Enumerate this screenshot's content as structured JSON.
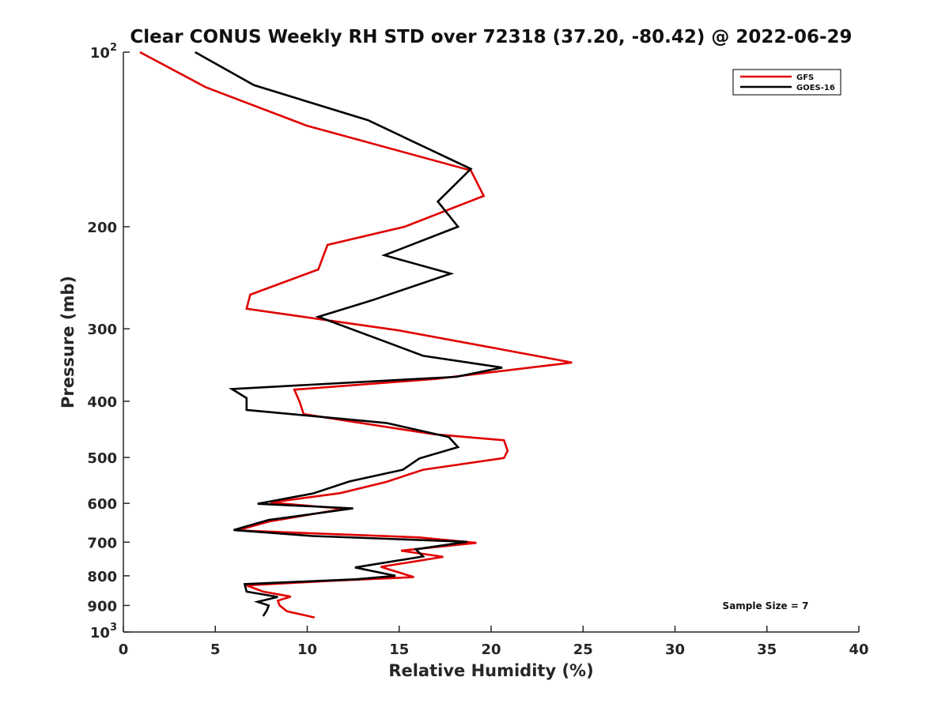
{
  "chart_data": {
    "type": "line",
    "title": "Clear CONUS Weekly RH STD over 72318 (37.20, -80.42) @ 2022-06-29",
    "xlabel": "Relative Humidity (%)",
    "ylabel": "Pressure (mb)",
    "xlim": [
      0,
      40
    ],
    "ylim": [
      100,
      1000
    ],
    "y_scale": "log",
    "y_reversed": true,
    "x_ticks": [
      0,
      5,
      10,
      15,
      20,
      25,
      30,
      35,
      40
    ],
    "x_tick_labels": [
      "0",
      "5",
      "10",
      "15",
      "20",
      "25",
      "30",
      "35",
      "40"
    ],
    "y_ticks": [
      100,
      200,
      300,
      400,
      500,
      600,
      700,
      800,
      900,
      1000
    ],
    "y_tick_labels": [
      {
        "base": "10",
        "exp": "2"
      },
      {
        "base": "200",
        "exp": ""
      },
      {
        "base": "300",
        "exp": ""
      },
      {
        "base": "400",
        "exp": ""
      },
      {
        "base": "500",
        "exp": ""
      },
      {
        "base": "600",
        "exp": ""
      },
      {
        "base": "700",
        "exp": ""
      },
      {
        "base": "800",
        "exp": ""
      },
      {
        "base": "900",
        "exp": ""
      },
      {
        "base": "10",
        "exp": "3"
      }
    ],
    "grid": false,
    "legend_position": "top-right",
    "annotation": "Sample Size = 7",
    "series": [
      {
        "name": "GFS",
        "color": "#e00000",
        "points": [
          [
            0.9,
            100
          ],
          [
            4.5,
            115
          ],
          [
            10.0,
            134
          ],
          [
            18.9,
            160
          ],
          [
            19.6,
            177
          ],
          [
            15.3,
            200
          ],
          [
            11.1,
            215
          ],
          [
            10.6,
            237
          ],
          [
            6.9,
            262
          ],
          [
            6.7,
            277
          ],
          [
            15.0,
            302
          ],
          [
            20.0,
            323
          ],
          [
            24.4,
            343
          ],
          [
            17.0,
            366
          ],
          [
            9.3,
            382
          ],
          [
            9.6,
            402
          ],
          [
            9.8,
            421
          ],
          [
            16.9,
            456
          ],
          [
            20.7,
            467
          ],
          [
            20.9,
            487
          ],
          [
            20.7,
            501
          ],
          [
            16.3,
            525
          ],
          [
            14.3,
            551
          ],
          [
            11.8,
            576
          ],
          [
            8.0,
            598
          ],
          [
            12.0,
            613
          ],
          [
            7.9,
            645
          ],
          [
            6.2,
            668
          ],
          [
            16.1,
            687
          ],
          [
            19.2,
            702
          ],
          [
            15.1,
            724
          ],
          [
            17.4,
            742
          ],
          [
            14.0,
            772
          ],
          [
            15.8,
            804
          ],
          [
            11.0,
            817
          ],
          [
            6.7,
            831
          ],
          [
            7.6,
            852
          ],
          [
            9.1,
            869
          ],
          [
            8.4,
            883
          ],
          [
            8.5,
            900
          ],
          [
            8.9,
            921
          ],
          [
            10.4,
            944
          ]
        ]
      },
      {
        "name": "GOES-16",
        "color": "#000000",
        "points": [
          [
            3.9,
            100
          ],
          [
            7.1,
            114
          ],
          [
            13.3,
            131
          ],
          [
            18.9,
            159
          ],
          [
            17.1,
            181
          ],
          [
            18.2,
            200
          ],
          [
            14.2,
            224
          ],
          [
            17.8,
            241
          ],
          [
            13.5,
            268
          ],
          [
            10.6,
            286
          ],
          [
            14.4,
            317
          ],
          [
            16.3,
            334
          ],
          [
            20.6,
            350
          ],
          [
            18.1,
            363
          ],
          [
            5.9,
            381
          ],
          [
            6.7,
            395
          ],
          [
            6.7,
            414
          ],
          [
            14.3,
            436
          ],
          [
            17.7,
            461
          ],
          [
            18.2,
            480
          ],
          [
            16.1,
            502
          ],
          [
            15.2,
            525
          ],
          [
            12.3,
            550
          ],
          [
            10.3,
            577
          ],
          [
            7.3,
            601
          ],
          [
            12.5,
            612
          ],
          [
            7.9,
            641
          ],
          [
            6.0,
            667
          ],
          [
            10.3,
            683
          ],
          [
            18.7,
            699
          ],
          [
            15.9,
            720
          ],
          [
            16.3,
            741
          ],
          [
            12.6,
            774
          ],
          [
            14.8,
            800
          ],
          [
            12.7,
            811
          ],
          [
            6.6,
            827
          ],
          [
            6.7,
            852
          ],
          [
            8.4,
            870
          ],
          [
            7.3,
            887
          ],
          [
            7.9,
            900
          ],
          [
            7.8,
            918
          ],
          [
            7.6,
            939
          ]
        ]
      }
    ]
  }
}
